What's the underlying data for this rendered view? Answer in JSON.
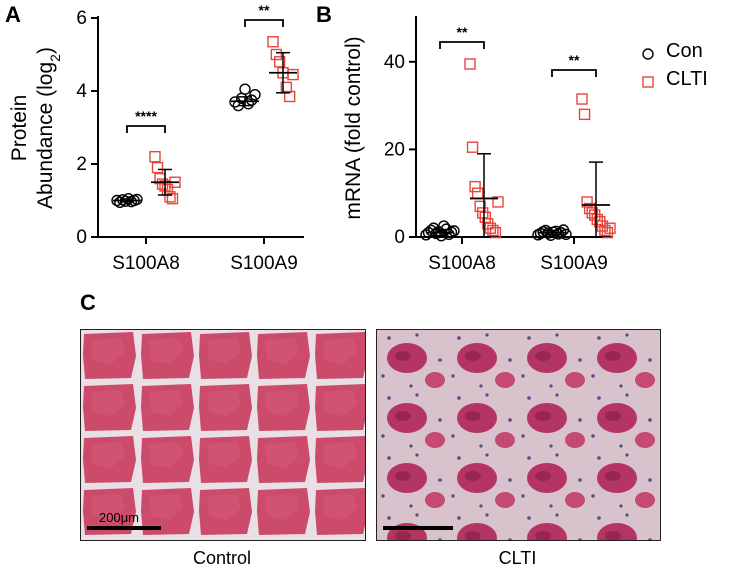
{
  "panels": {
    "A": {
      "letter": "A"
    },
    "B": {
      "letter": "B"
    },
    "C": {
      "letter": "C"
    }
  },
  "legend": {
    "items": [
      {
        "label": "Con",
        "color": "#000000",
        "marker": "circle"
      },
      {
        "label": "CLTI",
        "color": "#e8453c",
        "marker": "square"
      }
    ]
  },
  "chart_data": [
    {
      "id": "A",
      "type": "scatter",
      "ylabel_line1": "Protein",
      "ylabel_line2": "Abundance (log",
      "ylabel_sub": "2",
      "ylabel_close": ")",
      "categories": [
        "S100A8",
        "S100A9"
      ],
      "ylim": [
        0,
        6
      ],
      "yticks": [
        "0",
        "2",
        "4",
        "6"
      ],
      "series": [
        {
          "name": "Con",
          "color": "#000000",
          "points": [
            [
              1.0,
              0.95,
              1.02,
              0.98,
              1.05,
              0.97,
              1.0,
              1.03
            ],
            [
              3.7,
              3.6,
              3.8,
              4.05,
              3.65,
              3.75,
              3.9
            ]
          ],
          "mean": [
            1.0,
            3.72
          ],
          "sd": [
            0.04,
            0.12
          ]
        },
        {
          "name": "CLTI",
          "color": "#e8453c",
          "points": [
            [
              2.2,
              1.9,
              1.6,
              1.45,
              1.4,
              1.3,
              1.1,
              1.05,
              1.5
            ],
            [
              5.35,
              5.0,
              4.8,
              4.5,
              4.1,
              3.85,
              4.45
            ]
          ],
          "mean": [
            1.5,
            4.5
          ],
          "sd": [
            0.35,
            0.55
          ]
        }
      ],
      "significance": [
        "****",
        "**"
      ]
    },
    {
      "id": "B",
      "type": "scatter",
      "ylabel": "mRNA (fold control)",
      "categories": [
        "S100A8",
        "S100A9"
      ],
      "ylim": [
        0,
        50
      ],
      "yticks": [
        "0",
        "20",
        "40"
      ],
      "series": [
        {
          "name": "Con",
          "color": "#000000",
          "points": [
            [
              0.5,
              1.0,
              1.5,
              2.0,
              0.8,
              1.2,
              0.3,
              2.5,
              1.8,
              0.6,
              1.1,
              1.4
            ],
            [
              0.5,
              0.8,
              1.2,
              1.5,
              0.9,
              0.4,
              1.1,
              1.3,
              0.7,
              1.0,
              1.6,
              0.6
            ]
          ],
          "mean": [
            1.0,
            1.0
          ],
          "sd": [
            0.7,
            0.5
          ]
        },
        {
          "name": "CLTI",
          "color": "#e8453c",
          "points": [
            [
              39.5,
              20.5,
              11.5,
              10.0,
              7.0,
              5.5,
              4.5,
              3.0,
              2.0,
              1.5,
              1.0,
              8.0
            ],
            [
              31.5,
              28.0,
              8.0,
              6.5,
              5.5,
              5.0,
              4.0,
              3.5,
              2.5,
              1.5,
              1.0,
              2.0
            ]
          ],
          "mean": [
            8.8,
            7.3
          ],
          "sd": [
            10.2,
            9.8
          ]
        }
      ],
      "significance": [
        "**",
        "**"
      ]
    }
  ],
  "micrographs": {
    "scale_bar_label": "200μm",
    "captions": [
      "Control",
      "CLTI"
    ]
  }
}
